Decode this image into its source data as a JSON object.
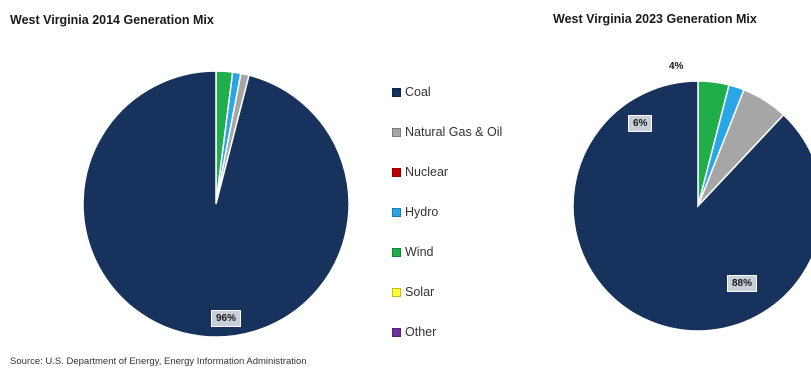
{
  "chart_data": [
    {
      "type": "pie",
      "title": "West Virginia 2014 Generation Mix",
      "categories": [
        "Coal",
        "Natural Gas & Oil",
        "Nuclear",
        "Hydro",
        "Wind",
        "Solar",
        "Other"
      ],
      "values": [
        96,
        1,
        0,
        1,
        2,
        0,
        0
      ],
      "data_labels": [
        {
          "category": "Coal",
          "text": "96%"
        }
      ]
    },
    {
      "type": "pie",
      "title": "West Virginia 2023 Generation Mix",
      "categories": [
        "Coal",
        "Natural Gas & Oil",
        "Nuclear",
        "Hydro",
        "Wind",
        "Solar",
        "Other"
      ],
      "values": [
        88,
        6,
        0,
        2,
        4,
        0,
        0
      ],
      "data_labels": [
        {
          "category": "Coal",
          "text": "88%"
        },
        {
          "category": "Natural Gas & Oil",
          "text": "6%"
        },
        {
          "category": "Wind",
          "text": "4%"
        }
      ]
    }
  ],
  "legend": {
    "placement": "center",
    "items": [
      {
        "label": "Coal",
        "color": "#17325c"
      },
      {
        "label": "Natural Gas & Oil",
        "color": "#a6a6a6"
      },
      {
        "label": "Nuclear",
        "color": "#c00000"
      },
      {
        "label": "Hydro",
        "color": "#2aa6e6"
      },
      {
        "label": "Wind",
        "color": "#1fae4a"
      },
      {
        "label": "Solar",
        "color": "#ffff33"
      },
      {
        "label": "Other",
        "color": "#7030a0"
      }
    ]
  },
  "source": "Source: U.S. Department of Energy, Energy Information Administration"
}
